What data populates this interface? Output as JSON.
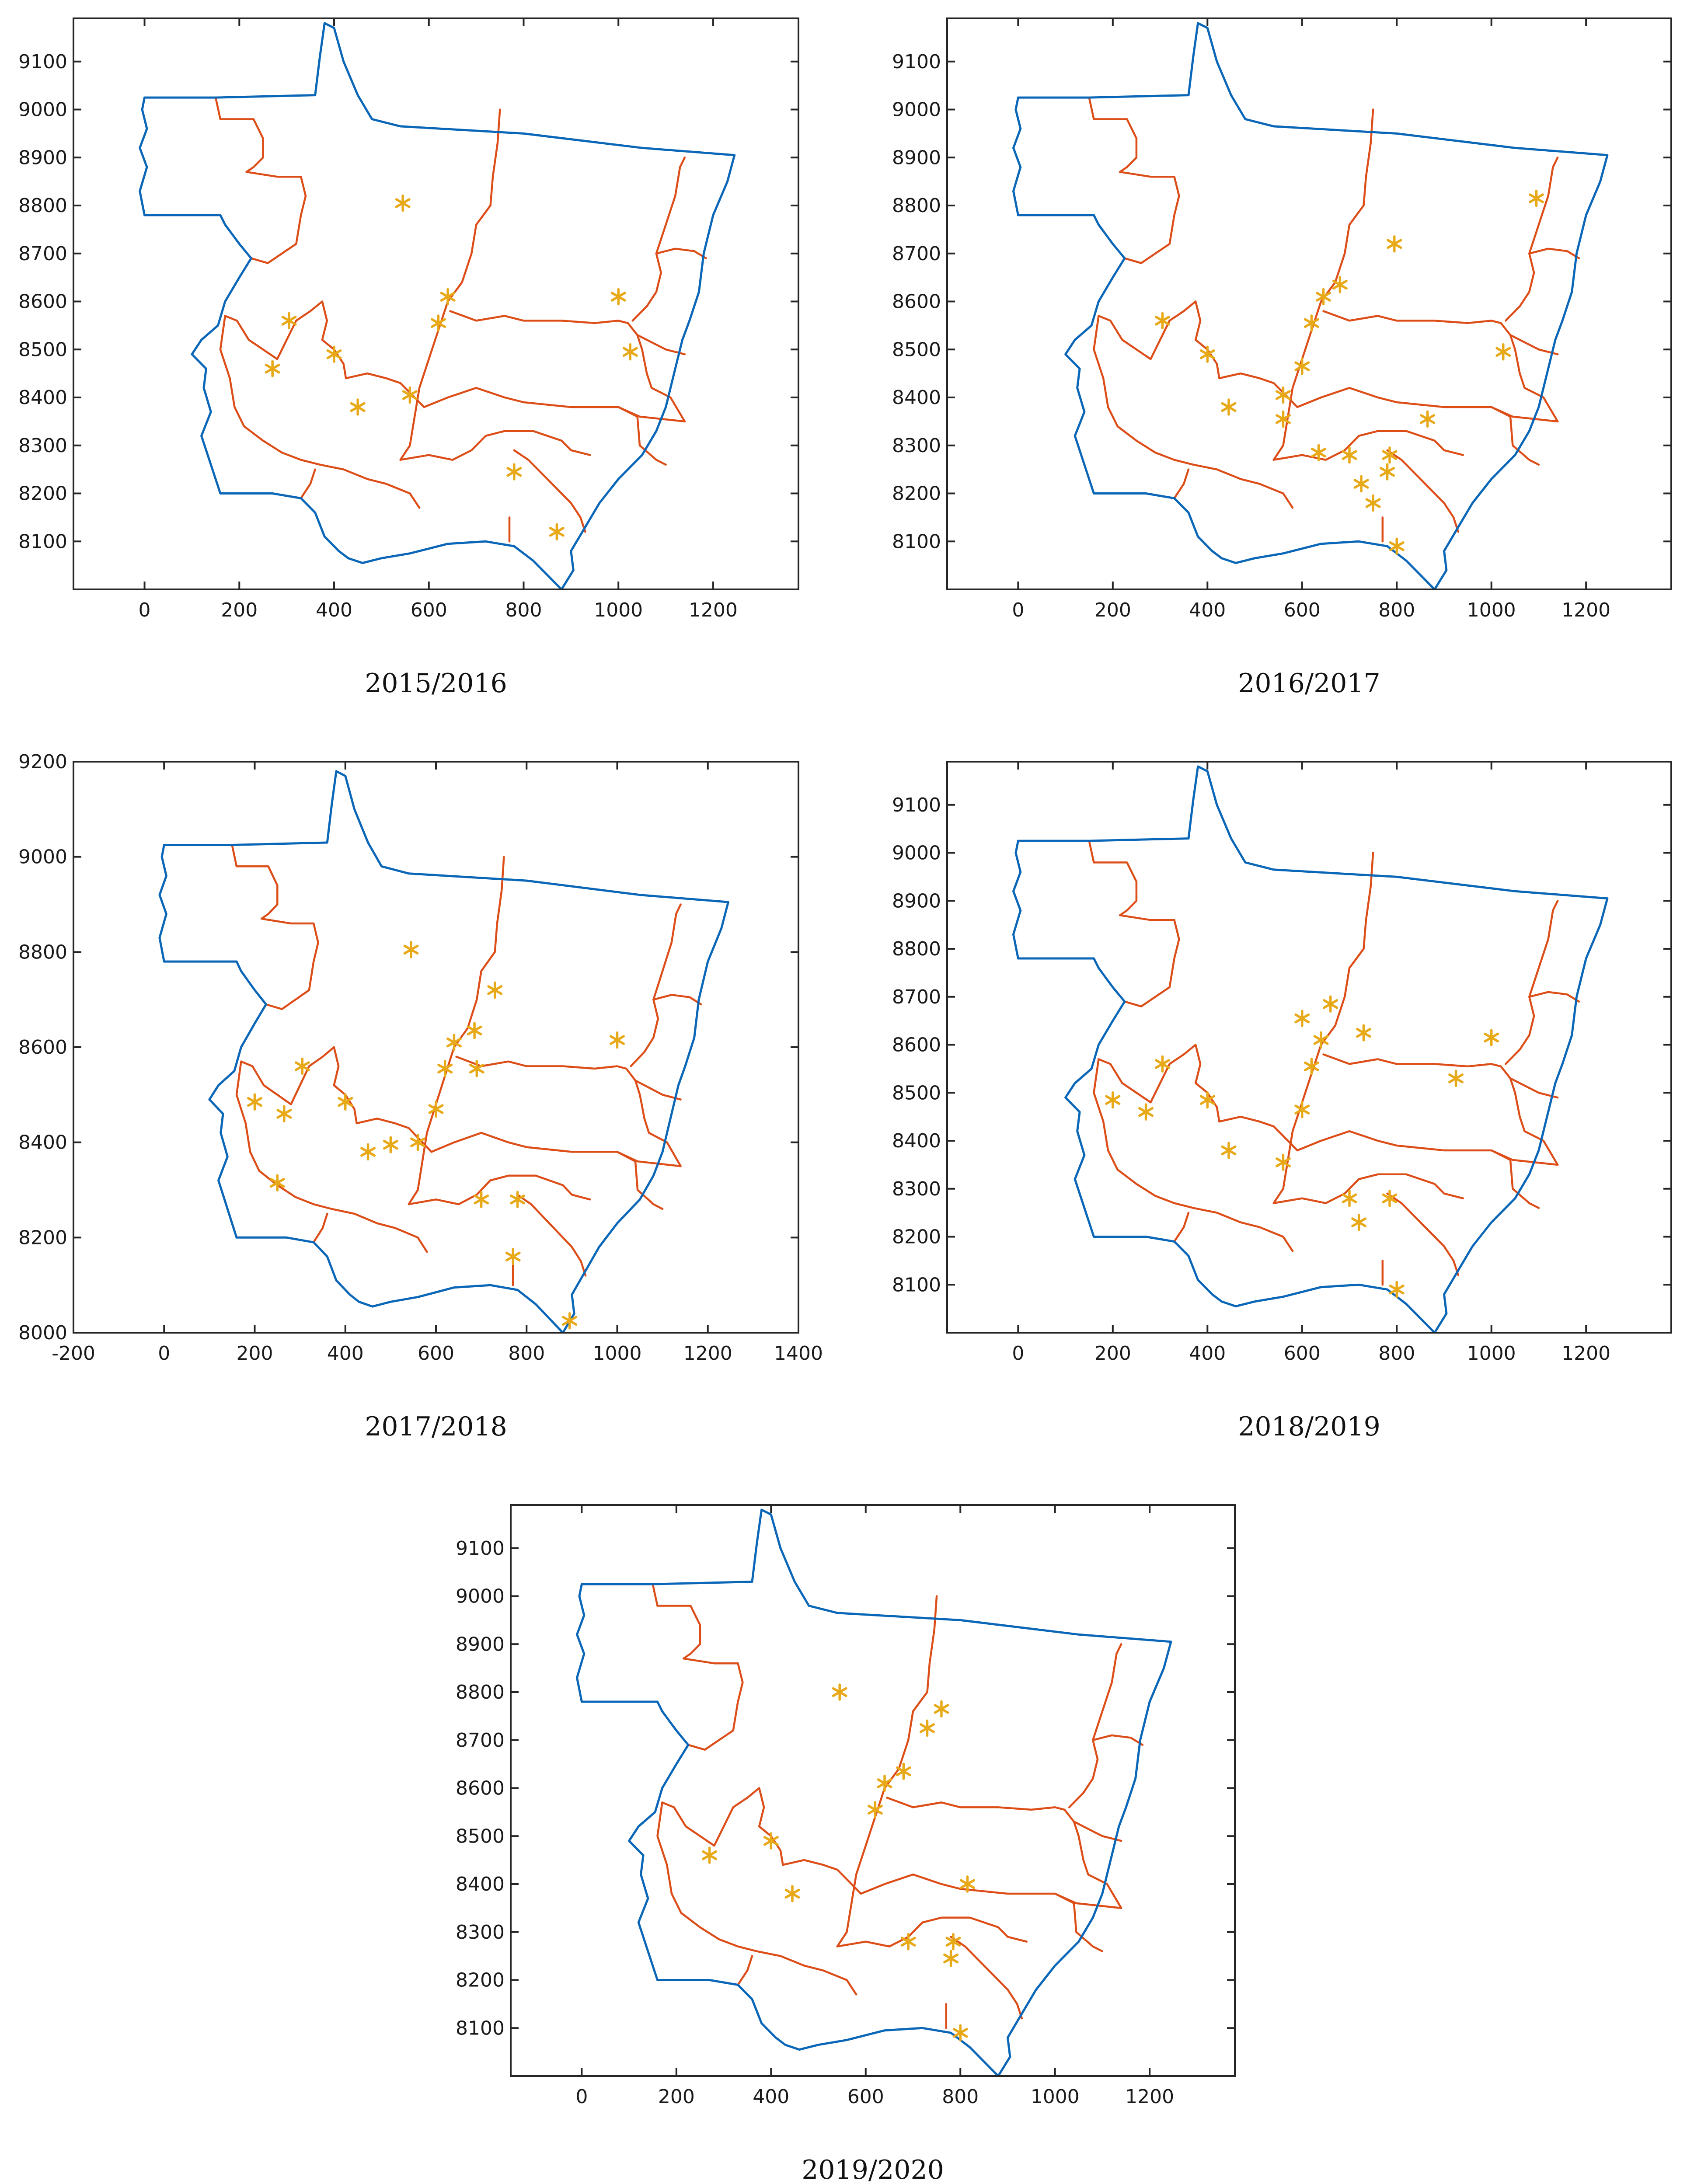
{
  "colors": {
    "state_boundary": "#0a66b7",
    "internal_division": "#dd4d18",
    "station_marker": "#e8a918",
    "axes": "#262626",
    "background": "#ffffff"
  },
  "chart_data": [
    {
      "type": "scatter",
      "caption": "2015/2016",
      "xlim": [
        -150,
        1380
      ],
      "ylim": [
        8000,
        9190
      ],
      "xticks": [
        0,
        200,
        400,
        600,
        800,
        1000,
        1200
      ],
      "yticks": [
        8100,
        8200,
        8300,
        8400,
        8500,
        8600,
        8700,
        8800,
        8900,
        9000,
        9100
      ],
      "marker": "asterisk",
      "points": [
        [
          545,
          8805
        ],
        [
          640,
          8610
        ],
        [
          620,
          8555
        ],
        [
          305,
          8560
        ],
        [
          400,
          8490
        ],
        [
          270,
          8460
        ],
        [
          450,
          8380
        ],
        [
          560,
          8405
        ],
        [
          1000,
          8610
        ],
        [
          1025,
          8495
        ],
        [
          780,
          8245
        ],
        [
          870,
          8120
        ]
      ]
    },
    {
      "type": "scatter",
      "caption": "2016/2017",
      "xlim": [
        -150,
        1380
      ],
      "ylim": [
        8000,
        9190
      ],
      "xticks": [
        0,
        200,
        400,
        600,
        800,
        1000,
        1200
      ],
      "yticks": [
        8100,
        8200,
        8300,
        8400,
        8500,
        8600,
        8700,
        8800,
        8900,
        9000,
        9100
      ],
      "marker": "asterisk",
      "points": [
        [
          1095,
          8815
        ],
        [
          795,
          8720
        ],
        [
          680,
          8635
        ],
        [
          645,
          8610
        ],
        [
          620,
          8555
        ],
        [
          305,
          8560
        ],
        [
          400,
          8490
        ],
        [
          600,
          8465
        ],
        [
          1025,
          8495
        ],
        [
          560,
          8405
        ],
        [
          445,
          8380
        ],
        [
          560,
          8355
        ],
        [
          865,
          8355
        ],
        [
          635,
          8285
        ],
        [
          700,
          8280
        ],
        [
          785,
          8280
        ],
        [
          780,
          8245
        ],
        [
          725,
          8220
        ],
        [
          750,
          8180
        ],
        [
          800,
          8090
        ]
      ]
    },
    {
      "type": "scatter",
      "caption": "2017/2018",
      "xlim": [
        -200,
        1400
      ],
      "ylim": [
        8000,
        9200
      ],
      "xticks": [
        -200,
        0,
        200,
        400,
        600,
        800,
        1000,
        1200,
        1400
      ],
      "yticks": [
        8000,
        8200,
        8400,
        8600,
        8800,
        9000,
        9200
      ],
      "marker": "asterisk",
      "points": [
        [
          545,
          8805
        ],
        [
          730,
          8720
        ],
        [
          685,
          8635
        ],
        [
          640,
          8610
        ],
        [
          620,
          8555
        ],
        [
          690,
          8555
        ],
        [
          305,
          8560
        ],
        [
          1000,
          8615
        ],
        [
          200,
          8485
        ],
        [
          400,
          8485
        ],
        [
          265,
          8460
        ],
        [
          600,
          8470
        ],
        [
          560,
          8400
        ],
        [
          500,
          8395
        ],
        [
          450,
          8380
        ],
        [
          250,
          8315
        ],
        [
          700,
          8280
        ],
        [
          780,
          8280
        ],
        [
          770,
          8160
        ],
        [
          895,
          8025
        ]
      ]
    },
    {
      "type": "scatter",
      "caption": "2018/2019",
      "xlim": [
        -150,
        1380
      ],
      "ylim": [
        8000,
        9190
      ],
      "xticks": [
        0,
        200,
        400,
        600,
        800,
        1000,
        1200
      ],
      "yticks": [
        8100,
        8200,
        8300,
        8400,
        8500,
        8600,
        8700,
        8800,
        8900,
        9000,
        9100
      ],
      "marker": "asterisk",
      "points": [
        [
          660,
          8685
        ],
        [
          600,
          8655
        ],
        [
          730,
          8625
        ],
        [
          640,
          8610
        ],
        [
          620,
          8555
        ],
        [
          305,
          8560
        ],
        [
          1000,
          8615
        ],
        [
          925,
          8530
        ],
        [
          200,
          8485
        ],
        [
          400,
          8485
        ],
        [
          270,
          8460
        ],
        [
          600,
          8465
        ],
        [
          445,
          8380
        ],
        [
          560,
          8355
        ],
        [
          700,
          8280
        ],
        [
          785,
          8280
        ],
        [
          720,
          8230
        ],
        [
          800,
          8090
        ]
      ]
    },
    {
      "type": "scatter",
      "caption": "2019/2020",
      "xlim": [
        -150,
        1380
      ],
      "ylim": [
        8000,
        9190
      ],
      "xticks": [
        0,
        200,
        400,
        600,
        800,
        1000,
        1200
      ],
      "yticks": [
        8100,
        8200,
        8300,
        8400,
        8500,
        8600,
        8700,
        8800,
        8900,
        9000,
        9100
      ],
      "marker": "asterisk",
      "points": [
        [
          545,
          8800
        ],
        [
          760,
          8765
        ],
        [
          730,
          8725
        ],
        [
          680,
          8635
        ],
        [
          640,
          8610
        ],
        [
          620,
          8555
        ],
        [
          270,
          8460
        ],
        [
          400,
          8490
        ],
        [
          445,
          8380
        ],
        [
          815,
          8400
        ],
        [
          690,
          8280
        ],
        [
          785,
          8280
        ],
        [
          780,
          8245
        ],
        [
          800,
          8090
        ]
      ]
    }
  ]
}
